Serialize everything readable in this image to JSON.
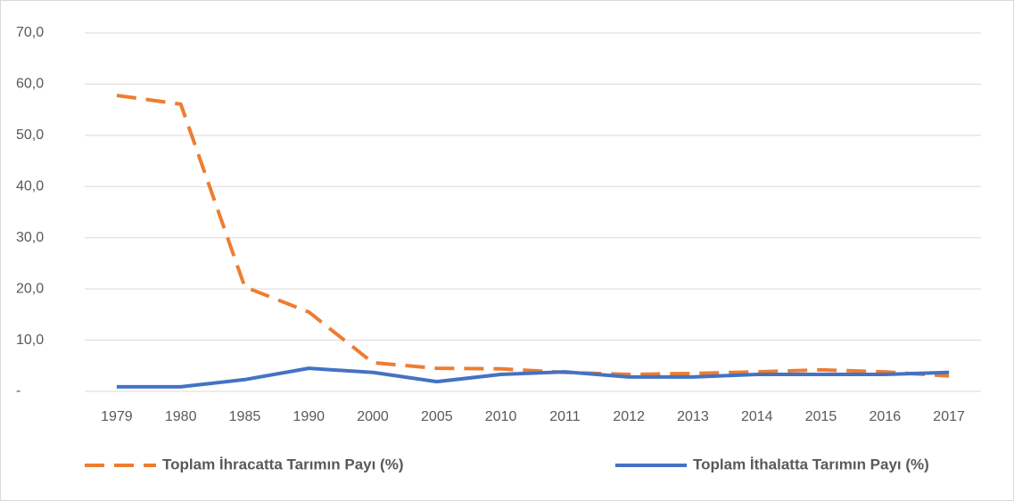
{
  "chart_data": {
    "type": "line",
    "categories": [
      "1979",
      "1980",
      "1985",
      "1990",
      "2000",
      "2005",
      "2010",
      "2011",
      "2012",
      "2013",
      "2014",
      "2015",
      "2016",
      "2017"
    ],
    "series": [
      {
        "name": "Toplam İhracatta Tarımın Payı (%)",
        "color": "#ed7d31",
        "style": "dashed",
        "values": [
          57.8,
          56.1,
          20.4,
          15.5,
          5.6,
          4.5,
          4.4,
          3.7,
          3.3,
          3.5,
          3.8,
          4.2,
          3.8,
          3.0
        ]
      },
      {
        "name": "Toplam İthalatta Tarımın Payı (%)",
        "color": "#4472c4",
        "style": "solid",
        "values": [
          0.9,
          0.9,
          2.3,
          4.5,
          3.7,
          1.9,
          3.3,
          3.8,
          2.8,
          2.8,
          3.3,
          3.3,
          3.3,
          3.7
        ]
      }
    ],
    "ylim": [
      0,
      70
    ],
    "yticks": [
      {
        "value": 0,
        "label": "-"
      },
      {
        "value": 10,
        "label": "10,0"
      },
      {
        "value": 20,
        "label": "20,0"
      },
      {
        "value": 30,
        "label": "30,0"
      },
      {
        "value": 40,
        "label": "40,0"
      },
      {
        "value": 50,
        "label": "50,0"
      },
      {
        "value": 60,
        "label": "60,0"
      },
      {
        "value": 70,
        "label": "70,0"
      }
    ],
    "grid": true,
    "legend": "bottom"
  }
}
